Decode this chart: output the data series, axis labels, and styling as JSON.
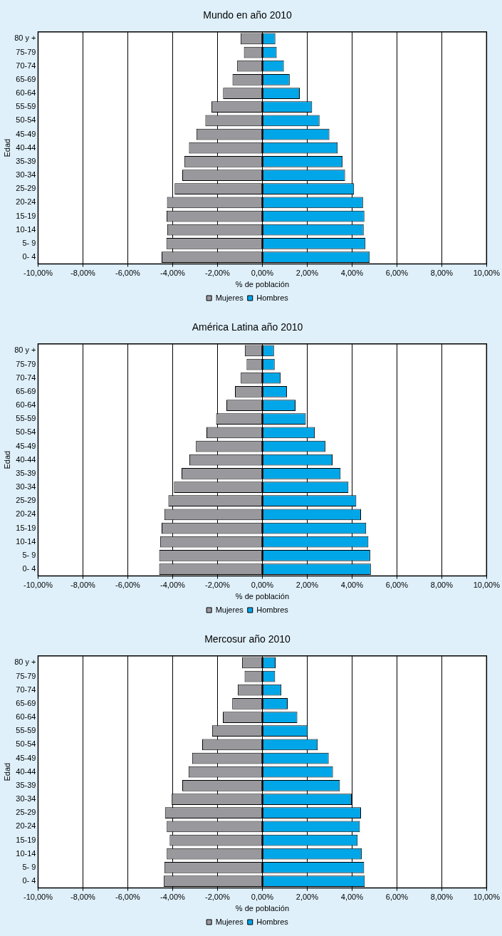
{
  "chart_data": [
    {
      "type": "bar",
      "orientation": "horizontal",
      "stacked": true,
      "title": "Mundo en año 2010",
      "xlabel": "% de población",
      "ylabel": "Edad",
      "categories": [
        "80 y +",
        "75-79",
        "70-74",
        "65-69",
        "60-64",
        "55-59",
        "50-54",
        "45-49",
        "40-44",
        "35-39",
        "30-34",
        "25-29",
        "20-24",
        "15-19",
        "10-14",
        "5- 9",
        "0- 4"
      ],
      "series": [
        {
          "name": "Mujeres",
          "color": "#99989d",
          "values": [
            -0.97,
            -0.82,
            -1.12,
            -1.33,
            -1.75,
            -2.27,
            -2.54,
            -2.94,
            -3.27,
            -3.48,
            -3.57,
            -3.91,
            -4.25,
            -4.27,
            -4.24,
            -4.28,
            -4.49
          ]
        },
        {
          "name": "Hombres",
          "color": "#00a6e8",
          "values": [
            0.58,
            0.64,
            0.96,
            1.22,
            1.67,
            2.22,
            2.55,
            2.99,
            3.36,
            3.58,
            3.69,
            4.09,
            4.49,
            4.55,
            4.52,
            4.6,
            4.79
          ]
        }
      ],
      "xlim": [
        -10,
        10
      ],
      "xticks": [
        {
          "value": -10,
          "label": "-10,00%"
        },
        {
          "value": -8,
          "label": "-8,00%"
        },
        {
          "value": -6,
          "label": "-6,00%"
        },
        {
          "value": -4,
          "label": "-4,00%"
        },
        {
          "value": -2,
          "label": "-2,00%"
        },
        {
          "value": 0,
          "label": "0,00%"
        },
        {
          "value": 2,
          "label": "2,00%"
        },
        {
          "value": 4,
          "label": "4,00%"
        },
        {
          "value": 6,
          "label": "6,00%"
        },
        {
          "value": 8,
          "label": "8,00%"
        },
        {
          "value": 10,
          "label": "10,00%"
        }
      ],
      "grid": "x",
      "legend": "bottom"
    },
    {
      "type": "bar",
      "orientation": "horizontal",
      "stacked": true,
      "title": "América Latina año 2010",
      "xlabel": "% de población",
      "ylabel": "Edad",
      "categories": [
        "80 y +",
        "75-79",
        "70-74",
        "65-69",
        "60-64",
        "55-59",
        "50-54",
        "45-49",
        "40-44",
        "35-39",
        "30-34",
        "25-29",
        "20-24",
        "15-19",
        "10-14",
        "5- 9",
        "0- 4"
      ],
      "series": [
        {
          "name": "Mujeres",
          "color": "#99989d",
          "values": [
            -0.78,
            -0.7,
            -0.96,
            -1.22,
            -1.6,
            -2.06,
            -2.49,
            -2.96,
            -3.25,
            -3.6,
            -3.94,
            -4.19,
            -4.37,
            -4.49,
            -4.55,
            -4.6,
            -4.6
          ]
        },
        {
          "name": "Hombres",
          "color": "#00a6e8",
          "values": [
            0.52,
            0.55,
            0.81,
            1.1,
            1.48,
            1.94,
            2.34,
            2.81,
            3.13,
            3.49,
            3.84,
            4.19,
            4.4,
            4.63,
            4.73,
            4.81,
            4.84
          ]
        }
      ],
      "xlim": [
        -10,
        10
      ],
      "xticks": [
        {
          "value": -10,
          "label": "-10,00%"
        },
        {
          "value": -8,
          "label": "-8,00%"
        },
        {
          "value": -6,
          "label": "-6,00%"
        },
        {
          "value": -4,
          "label": "-4,00%"
        },
        {
          "value": -2,
          "label": "-2,00%"
        },
        {
          "value": 0,
          "label": "0,00%"
        },
        {
          "value": 2,
          "label": "2,00%"
        },
        {
          "value": 4,
          "label": "4,00%"
        },
        {
          "value": 6,
          "label": "6,00%"
        },
        {
          "value": 8,
          "label": "8,00%"
        },
        {
          "value": 10,
          "label": "10,00%"
        }
      ],
      "grid": "x",
      "legend": "bottom"
    },
    {
      "type": "bar",
      "orientation": "horizontal",
      "stacked": true,
      "title": "Mercosur año 2010",
      "xlabel": "% de población",
      "ylabel": "Edad",
      "categories": [
        "80 y +",
        "75-79",
        "70-74",
        "65-69",
        "60-64",
        "55-59",
        "50-54",
        "45-49",
        "40-44",
        "35-39",
        "30-34",
        "25-29",
        "20-24",
        "15-19",
        "10-14",
        "5- 9",
        "0- 4"
      ],
      "series": [
        {
          "name": "Mujeres",
          "color": "#99989d",
          "values": [
            -0.9,
            -0.79,
            -1.09,
            -1.34,
            -1.76,
            -2.24,
            -2.68,
            -3.13,
            -3.29,
            -3.57,
            -4.04,
            -4.34,
            -4.26,
            -4.13,
            -4.26,
            -4.37,
            -4.4
          ]
        },
        {
          "name": "Hombres",
          "color": "#00a6e8",
          "values": [
            0.59,
            0.57,
            0.85,
            1.13,
            1.56,
            2.03,
            2.47,
            2.96,
            3.15,
            3.46,
            3.99,
            4.4,
            4.35,
            4.25,
            4.43,
            4.54,
            4.57
          ]
        }
      ],
      "xlim": [
        -10,
        10
      ],
      "xticks": [
        {
          "value": -10,
          "label": "-10,00%"
        },
        {
          "value": -8,
          "label": "-8,00%"
        },
        {
          "value": -6,
          "label": "-6,00%"
        },
        {
          "value": -4,
          "label": "-4,00%"
        },
        {
          "value": -2,
          "label": "-2,00%"
        },
        {
          "value": 0,
          "label": "0,00%"
        },
        {
          "value": 2,
          "label": "2,00%"
        },
        {
          "value": 4,
          "label": "4,00%"
        },
        {
          "value": 6,
          "label": "6,00%"
        },
        {
          "value": 8,
          "label": "8,00%"
        },
        {
          "value": 10,
          "label": "10,00%"
        }
      ],
      "grid": "x",
      "legend": "bottom"
    }
  ]
}
